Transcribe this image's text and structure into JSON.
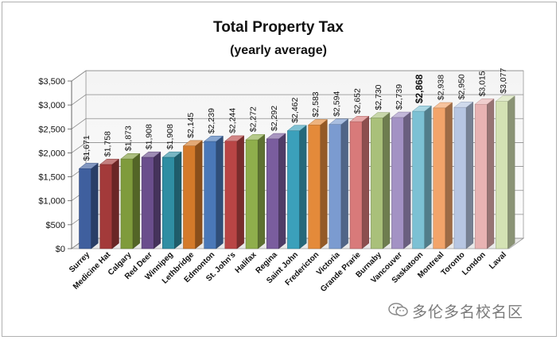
{
  "chart_data": {
    "type": "bar",
    "title": "Total Property Tax",
    "subtitle": "(yearly average)",
    "xlabel": "",
    "ylabel": "",
    "ylim": [
      0,
      3500
    ],
    "yticks": [
      0,
      500,
      1000,
      1500,
      2000,
      2500,
      3000,
      3500
    ],
    "ytick_labels": [
      "$0",
      "$500",
      "$1,000",
      "$1,500",
      "$2,000",
      "$2,500",
      "$3,000",
      "$3,500"
    ],
    "grid": true,
    "legend": "none",
    "categories": [
      "Surrey",
      "Medicine Hat",
      "Calgary",
      "Red Deer",
      "Winnipeg",
      "Lethbridge",
      "Edmonton",
      "St. John's",
      "Halifax",
      "Regina",
      "Saint John",
      "Fredericton",
      "Victoria",
      "Grande Prarie",
      "Burnaby",
      "Vancouver",
      "Saskatoon",
      "Montreal",
      "Toronto",
      "London",
      "Laval"
    ],
    "values": [
      1671,
      1758,
      1873,
      1908,
      1908,
      2145,
      2239,
      2244,
      2272,
      2292,
      2462,
      2583,
      2594,
      2652,
      2730,
      2739,
      2868,
      2938,
      2950,
      3015,
      3077
    ],
    "data_labels": [
      "$1,671",
      "$1,758",
      "$1,873",
      "$1,908",
      "$1,908",
      "$2,145",
      "$2,239",
      "$2,244",
      "$2,272",
      "$2,292",
      "$2,462",
      "$2,583",
      "$2,594",
      "$2,652",
      "$2,730",
      "$2,739",
      "$2,868",
      "$2,938",
      "$2,950",
      "$3,015",
      "$3,077"
    ],
    "highlighted_label": "$2,868",
    "colors": [
      "#3f5f9e",
      "#a33a3a",
      "#7f9b3c",
      "#6a4e8c",
      "#2f8ea3",
      "#d47a2a",
      "#4a78b8",
      "#b94545",
      "#8fae4c",
      "#7a5d9e",
      "#3ba0bb",
      "#e48a3a",
      "#7b9bd0",
      "#d87a7a",
      "#a9c07a",
      "#a392c4",
      "#7cc1d4",
      "#f2a46a",
      "#b7c6e2",
      "#e8b3b3",
      "#d4e2b4"
    ]
  },
  "watermark": {
    "text": "多伦多名校名区",
    "icon": "wechat-icon"
  }
}
